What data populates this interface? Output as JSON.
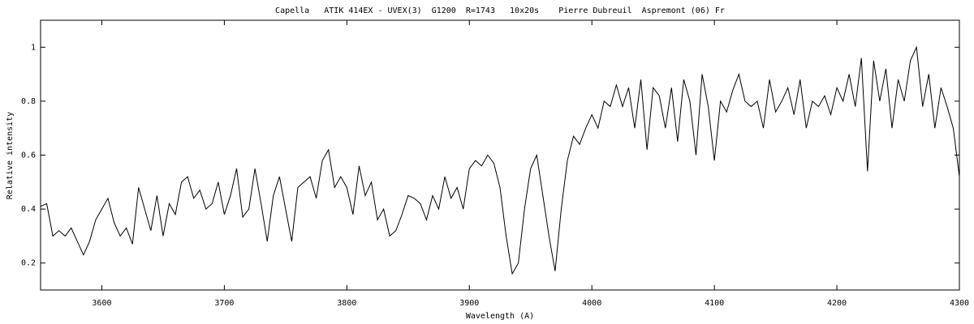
{
  "chart_data": {
    "type": "line",
    "title": "Capella   ATIK 414EX - UVEX(3)  G1200  R=1743   10x20s    Pierre Dubreuil  Aspremont (06) Fr",
    "xlabel": "Wavelength (A)",
    "ylabel": "Relative intensity",
    "color": "#000000",
    "xlim": [
      3550,
      4300
    ],
    "ylim": [
      0.1,
      1.1
    ],
    "xticks": [
      3600,
      3700,
      3800,
      3900,
      4000,
      4100,
      4200,
      4300
    ],
    "yticks": [
      0.2,
      0.4,
      0.6,
      0.8,
      1
    ],
    "x": [
      3550,
      3555,
      3560,
      3565,
      3570,
      3575,
      3580,
      3585,
      3590,
      3595,
      3600,
      3605,
      3610,
      3615,
      3620,
      3625,
      3630,
      3635,
      3640,
      3645,
      3650,
      3655,
      3660,
      3665,
      3670,
      3675,
      3680,
      3685,
      3690,
      3695,
      3700,
      3705,
      3710,
      3715,
      3720,
      3725,
      3730,
      3735,
      3740,
      3745,
      3750,
      3755,
      3760,
      3765,
      3770,
      3775,
      3780,
      3785,
      3790,
      3795,
      3800,
      3805,
      3810,
      3815,
      3820,
      3825,
      3830,
      3835,
      3840,
      3845,
      3850,
      3855,
      3860,
      3865,
      3870,
      3875,
      3880,
      3885,
      3890,
      3895,
      3900,
      3905,
      3910,
      3915,
      3920,
      3925,
      3930,
      3935,
      3940,
      3945,
      3950,
      3955,
      3960,
      3965,
      3970,
      3975,
      3980,
      3985,
      3990,
      3995,
      4000,
      4005,
      4010,
      4015,
      4020,
      4025,
      4030,
      4035,
      4040,
      4045,
      4050,
      4055,
      4060,
      4065,
      4070,
      4075,
      4080,
      4085,
      4090,
      4095,
      4100,
      4105,
      4110,
      4115,
      4120,
      4125,
      4130,
      4135,
      4140,
      4145,
      4150,
      4155,
      4160,
      4165,
      4170,
      4175,
      4180,
      4185,
      4190,
      4195,
      4200,
      4205,
      4210,
      4215,
      4220,
      4225,
      4230,
      4235,
      4240,
      4245,
      4250,
      4255,
      4260,
      4265,
      4270,
      4275,
      4280,
      4285,
      4290,
      4295,
      4300
    ],
    "values": [
      0.41,
      0.42,
      0.3,
      0.32,
      0.3,
      0.33,
      0.28,
      0.23,
      0.28,
      0.36,
      0.4,
      0.44,
      0.35,
      0.3,
      0.33,
      0.27,
      0.48,
      0.4,
      0.32,
      0.45,
      0.3,
      0.42,
      0.38,
      0.5,
      0.52,
      0.44,
      0.47,
      0.4,
      0.42,
      0.5,
      0.38,
      0.45,
      0.55,
      0.37,
      0.4,
      0.55,
      0.42,
      0.28,
      0.45,
      0.52,
      0.4,
      0.28,
      0.48,
      0.5,
      0.52,
      0.44,
      0.58,
      0.62,
      0.48,
      0.52,
      0.48,
      0.38,
      0.56,
      0.45,
      0.5,
      0.36,
      0.4,
      0.3,
      0.32,
      0.38,
      0.45,
      0.44,
      0.42,
      0.36,
      0.45,
      0.4,
      0.52,
      0.44,
      0.48,
      0.4,
      0.55,
      0.58,
      0.56,
      0.6,
      0.57,
      0.48,
      0.3,
      0.16,
      0.2,
      0.4,
      0.55,
      0.6,
      0.45,
      0.3,
      0.17,
      0.4,
      0.58,
      0.67,
      0.64,
      0.7,
      0.75,
      0.7,
      0.8,
      0.78,
      0.86,
      0.78,
      0.85,
      0.7,
      0.88,
      0.62,
      0.85,
      0.82,
      0.7,
      0.85,
      0.65,
      0.88,
      0.8,
      0.6,
      0.9,
      0.78,
      0.58,
      0.8,
      0.76,
      0.84,
      0.9,
      0.8,
      0.78,
      0.8,
      0.7,
      0.88,
      0.76,
      0.8,
      0.85,
      0.75,
      0.88,
      0.7,
      0.8,
      0.78,
      0.82,
      0.75,
      0.85,
      0.8,
      0.9,
      0.78,
      0.96,
      0.54,
      0.95,
      0.8,
      0.92,
      0.7,
      0.88,
      0.8,
      0.95,
      1.0,
      0.78,
      0.9,
      0.7,
      0.85,
      0.78,
      0.7,
      0.52
    ]
  }
}
